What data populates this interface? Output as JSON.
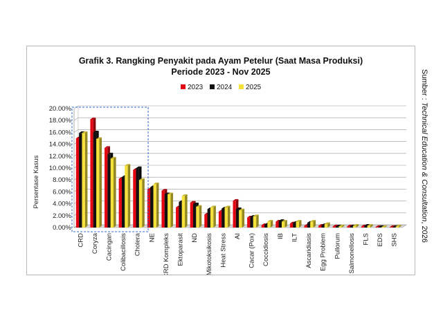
{
  "side_note": {
    "prefix": "Sumber : ",
    "source": "Technical Education & Consultation",
    "suffix": ", 2026"
  },
  "chart_data": {
    "type": "bar",
    "title": "Grafik 3. Rangking Penyakit pada Ayam Petelur (Saat Masa Produksi)",
    "subtitle": "Periode 2023 - Nov 2025",
    "ylabel": "Persentase Kasus",
    "xlabel": "",
    "ylim": [
      0,
      0.2
    ],
    "yticks": [
      "0.00%",
      "2.00%",
      "4.00%",
      "6.00%",
      "8.00%",
      "10.00%",
      "12.00%",
      "14.00%",
      "16.00%",
      "18.00%",
      "20.00%"
    ],
    "grid": true,
    "legend_position": "top-center",
    "categories": [
      "CRD",
      "Coryza",
      "Cacingan",
      "Colibacillosis",
      "Cholera",
      "NE",
      "CRD Kompleks",
      "Ektoparasit",
      "ND",
      "Mikotoksikosis",
      "Heat Stress",
      "AI",
      "Cacar (Pox)",
      "Coccidiosis",
      "IB",
      "ILT",
      "Ascaridiasis",
      "Egg Problem",
      "Pullorum",
      "Salmonellosis",
      "FLS",
      "EDS",
      "SHS"
    ],
    "series": [
      {
        "name": "2023",
        "color": "#e30613",
        "values": [
          0.15,
          0.182,
          0.134,
          0.082,
          0.097,
          0.064,
          0.062,
          0.034,
          0.042,
          0.022,
          0.027,
          0.045,
          0.017,
          0.004,
          0.01,
          0.007,
          0.003,
          0.003,
          0.002,
          0.002,
          0.002,
          0.001,
          0.001
        ]
      },
      {
        "name": "2024",
        "color": "#111111",
        "values": [
          0.159,
          0.16,
          0.123,
          0.085,
          0.1,
          0.068,
          0.056,
          0.043,
          0.039,
          0.031,
          0.032,
          0.031,
          0.018,
          0.005,
          0.011,
          0.008,
          0.008,
          0.004,
          0.002,
          0.002,
          0.003,
          0.001,
          0.001
        ]
      },
      {
        "name": "2025",
        "color": "#f5e13a",
        "values": [
          0.159,
          0.149,
          0.116,
          0.104,
          0.08,
          0.073,
          0.056,
          0.053,
          0.035,
          0.034,
          0.034,
          0.029,
          0.019,
          0.01,
          0.01,
          0.01,
          0.01,
          0.006,
          0.002,
          0.003,
          0.003,
          0.001,
          0.002
        ]
      }
    ],
    "highlight_box": {
      "from_category": "CRD",
      "to_category": "Cholera",
      "color": "#3366cc"
    }
  }
}
